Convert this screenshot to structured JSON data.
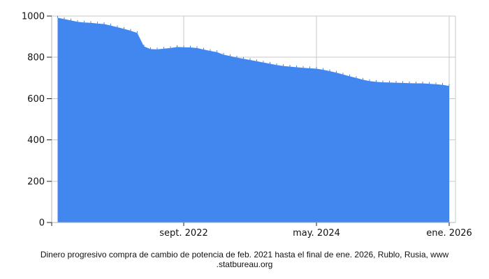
{
  "chart_data": {
    "type": "area",
    "title": "",
    "xlabel": "",
    "ylabel": "",
    "legend": "none",
    "grid": true,
    "ylim": [
      0,
      1000
    ],
    "y_ticks": [
      0,
      200,
      400,
      600,
      800,
      1000
    ],
    "x_tick_labels": [
      "sept. 2022",
      "may. 2024",
      "ene. 2026"
    ],
    "x_tick_month_indices": [
      19,
      39,
      59
    ],
    "x": [
      "feb. 2021",
      "mar. 2021",
      "abr. 2021",
      "may. 2021",
      "jun. 2021",
      "jul. 2021",
      "ago. 2021",
      "sept. 2021",
      "oct. 2021",
      "nov. 2021",
      "dic. 2021",
      "ene. 2022",
      "feb. 2022",
      "mar. 2022",
      "abr. 2022",
      "may. 2022",
      "jun. 2022",
      "jul. 2022",
      "ago. 2022",
      "sept. 2022",
      "oct. 2022",
      "nov. 2022",
      "dic. 2022",
      "ene. 2023",
      "feb. 2023",
      "mar. 2023",
      "abr. 2023",
      "may. 2023",
      "jun. 2023",
      "jul. 2023",
      "ago. 2023",
      "sept. 2023",
      "oct. 2023",
      "nov. 2023",
      "dic. 2023",
      "ene. 2024",
      "feb. 2024",
      "mar. 2024",
      "abr. 2024",
      "may. 2024",
      "jun. 2024",
      "jul. 2024",
      "ago. 2024",
      "sept. 2024",
      "oct. 2024",
      "nov. 2024",
      "dic. 2024",
      "ene. 2025",
      "feb. 2025",
      "mar. 2025",
      "abr. 2025",
      "may. 2025",
      "jun. 2025",
      "jul. 2025",
      "ago. 2025",
      "sept. 2025",
      "oct. 2025",
      "nov. 2025",
      "dic. 2025",
      "ene. 2026"
    ],
    "values": [
      992,
      985,
      979,
      972,
      969,
      967,
      964,
      961,
      954,
      946,
      938,
      929,
      918,
      853,
      840,
      839,
      842,
      845,
      850,
      849,
      848,
      845,
      838,
      831,
      825,
      813,
      806,
      799,
      793,
      787,
      781,
      775,
      769,
      763,
      758,
      755,
      752,
      749,
      747,
      745,
      740,
      733,
      726,
      717,
      708,
      700,
      692,
      685,
      681,
      679,
      678,
      677,
      676,
      675,
      674,
      674,
      672,
      670,
      667,
      661
    ],
    "colors": {
      "fill": "#4286ef",
      "grid": "#c9c9c9",
      "axis": "#b3b3b3",
      "tick": "#222222",
      "text": "#111111"
    }
  },
  "caption": {
    "line1": "Dinero progresivo compra de cambio de potencia de feb. 2021 hasta el final de ene. 2026, Rublo, Rusia, www",
    "line2": ".statbureau.org"
  }
}
